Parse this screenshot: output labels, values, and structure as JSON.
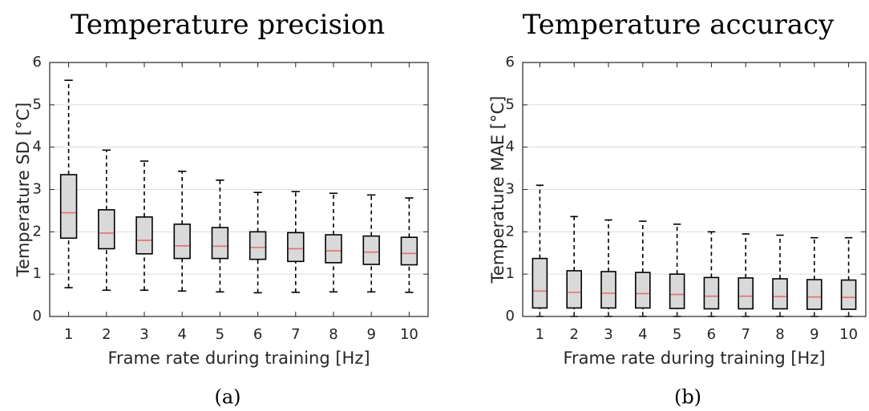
{
  "chart_data": [
    {
      "type": "box",
      "panel": "a",
      "title": "Temperature precision",
      "caption": "(a)",
      "xlabel": "Frame rate during training [Hz]",
      "ylabel": "Temperature SD [°C]",
      "ylim": [
        0,
        6
      ],
      "yticks": [
        0,
        1,
        2,
        3,
        4,
        5,
        6
      ],
      "grid": true,
      "categories": [
        "1",
        "2",
        "3",
        "4",
        "5",
        "6",
        "7",
        "8",
        "9",
        "10"
      ],
      "boxes": [
        {
          "whisker_low": 0.68,
          "q1": 1.85,
          "median": 2.45,
          "q3": 3.35,
          "whisker_high": 5.58
        },
        {
          "whisker_low": 0.62,
          "q1": 1.6,
          "median": 1.97,
          "q3": 2.52,
          "whisker_high": 3.93
        },
        {
          "whisker_low": 0.62,
          "q1": 1.48,
          "median": 1.8,
          "q3": 2.35,
          "whisker_high": 3.67
        },
        {
          "whisker_low": 0.6,
          "q1": 1.37,
          "median": 1.67,
          "q3": 2.18,
          "whisker_high": 3.43
        },
        {
          "whisker_low": 0.58,
          "q1": 1.37,
          "median": 1.66,
          "q3": 2.1,
          "whisker_high": 3.22
        },
        {
          "whisker_low": 0.56,
          "q1": 1.35,
          "median": 1.63,
          "q3": 2.0,
          "whisker_high": 2.93
        },
        {
          "whisker_low": 0.57,
          "q1": 1.3,
          "median": 1.6,
          "q3": 1.98,
          "whisker_high": 2.95
        },
        {
          "whisker_low": 0.58,
          "q1": 1.27,
          "median": 1.55,
          "q3": 1.93,
          "whisker_high": 2.91
        },
        {
          "whisker_low": 0.58,
          "q1": 1.23,
          "median": 1.52,
          "q3": 1.9,
          "whisker_high": 2.87
        },
        {
          "whisker_low": 0.57,
          "q1": 1.22,
          "median": 1.49,
          "q3": 1.87,
          "whisker_high": 2.8
        }
      ]
    },
    {
      "type": "box",
      "panel": "b",
      "title": "Temperature accuracy",
      "caption": "(b)",
      "xlabel": "Frame rate during training [Hz]",
      "ylabel": "Temperature MAE [°C]",
      "ylim": [
        0,
        6
      ],
      "yticks": [
        0,
        1,
        2,
        3,
        4,
        5,
        6
      ],
      "grid": true,
      "categories": [
        "1",
        "2",
        "3",
        "4",
        "5",
        "6",
        "7",
        "8",
        "9",
        "10"
      ],
      "boxes": [
        {
          "whisker_low": 0.0,
          "q1": 0.2,
          "median": 0.6,
          "q3": 1.37,
          "whisker_high": 3.1
        },
        {
          "whisker_low": 0.0,
          "q1": 0.2,
          "median": 0.57,
          "q3": 1.08,
          "whisker_high": 2.36
        },
        {
          "whisker_low": 0.0,
          "q1": 0.2,
          "median": 0.55,
          "q3": 1.06,
          "whisker_high": 2.28
        },
        {
          "whisker_low": 0.0,
          "q1": 0.2,
          "median": 0.54,
          "q3": 1.04,
          "whisker_high": 2.25
        },
        {
          "whisker_low": 0.0,
          "q1": 0.19,
          "median": 0.52,
          "q3": 1.0,
          "whisker_high": 2.18
        },
        {
          "whisker_low": 0.0,
          "q1": 0.18,
          "median": 0.48,
          "q3": 0.92,
          "whisker_high": 2.0
        },
        {
          "whisker_low": 0.0,
          "q1": 0.18,
          "median": 0.48,
          "q3": 0.91,
          "whisker_high": 1.95
        },
        {
          "whisker_low": 0.0,
          "q1": 0.18,
          "median": 0.47,
          "q3": 0.89,
          "whisker_high": 1.92
        },
        {
          "whisker_low": 0.0,
          "q1": 0.17,
          "median": 0.46,
          "q3": 0.87,
          "whisker_high": 1.86
        },
        {
          "whisker_low": 0.0,
          "q1": 0.17,
          "median": 0.45,
          "q3": 0.86,
          "whisker_high": 1.86
        }
      ]
    }
  ],
  "style": {
    "box_fill": "#d9d9d9",
    "median_color": "#e07070",
    "grid_color": "#dcdcdc"
  }
}
